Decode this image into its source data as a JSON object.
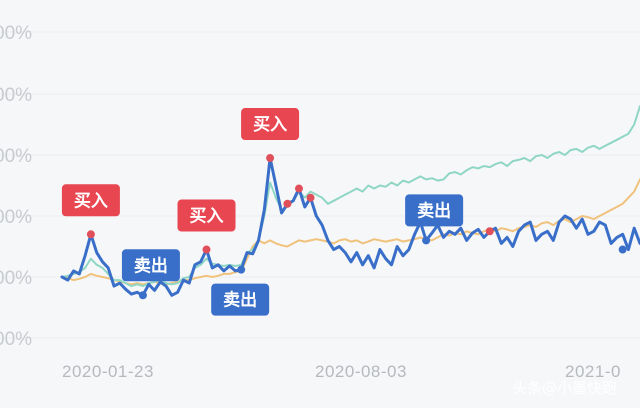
{
  "chart_data": {
    "type": "line",
    "title": "",
    "xlabel": "",
    "ylabel": "",
    "y_tick_labels": [
      "00%",
      "00%",
      "00%",
      "00%",
      "00%",
      "00%"
    ],
    "x_tick_labels": [
      "2020-01-23",
      "2020-08-03",
      "2021-0"
    ],
    "grid": true,
    "legend": "none",
    "series": [
      {
        "color": "#3a6fc9",
        "x": [
          0,
          1,
          2,
          3,
          4,
          5,
          6,
          7,
          8,
          9,
          10,
          11,
          12,
          13,
          14,
          15,
          16,
          17,
          18,
          19,
          20,
          21,
          22,
          23,
          24,
          25,
          26,
          27,
          28,
          29,
          30,
          31,
          32,
          33,
          34,
          35,
          36,
          37,
          38,
          39,
          40,
          41,
          42,
          43,
          44,
          45,
          46,
          47,
          48,
          49,
          50,
          51,
          52,
          53,
          54,
          55,
          56,
          57,
          58,
          59,
          60,
          61,
          62,
          63,
          64,
          65,
          66,
          67,
          68,
          69,
          70,
          71,
          72,
          73,
          74,
          75,
          76,
          77,
          78,
          79,
          80,
          81,
          82,
          83,
          84,
          85,
          86,
          87,
          88,
          89,
          90,
          91,
          92,
          93,
          94,
          95,
          96,
          97,
          98,
          99,
          100
        ],
        "values": [
          1.0,
          0.95,
          1.1,
          1.05,
          1.35,
          1.7,
          1.4,
          1.25,
          1.15,
          0.85,
          0.9,
          0.8,
          0.72,
          0.75,
          0.7,
          0.88,
          0.78,
          0.92,
          0.85,
          0.7,
          0.75,
          0.95,
          0.9,
          1.2,
          1.25,
          1.45,
          1.15,
          1.2,
          1.1,
          1.18,
          1.1,
          1.12,
          1.4,
          1.38,
          1.6,
          2.1,
          2.95,
          2.5,
          2.05,
          2.2,
          2.25,
          2.45,
          2.15,
          2.3,
          2.0,
          1.85,
          1.6,
          1.45,
          1.5,
          1.4,
          1.25,
          1.4,
          1.2,
          1.35,
          1.15,
          1.45,
          1.3,
          1.2,
          1.5,
          1.35,
          1.45,
          1.7,
          1.9,
          1.6,
          1.72,
          1.85,
          1.65,
          1.75,
          1.7,
          1.8,
          1.6,
          1.72,
          1.78,
          1.65,
          1.75,
          1.8,
          1.55,
          1.65,
          1.5,
          1.75,
          1.85,
          1.9,
          1.6,
          1.7,
          1.75,
          1.6,
          1.9,
          2.0,
          1.95,
          1.8,
          1.95,
          1.7,
          1.75,
          1.9,
          1.85,
          1.55,
          1.65,
          1.7,
          1.45,
          1.8,
          1.55
        ]
      },
      {
        "color": "#8fd6c4",
        "x": [
          0,
          1,
          2,
          3,
          4,
          5,
          6,
          7,
          8,
          9,
          10,
          11,
          12,
          13,
          14,
          15,
          16,
          17,
          18,
          19,
          20,
          21,
          22,
          23,
          24,
          25,
          26,
          27,
          28,
          29,
          30,
          31,
          32,
          33,
          34,
          35,
          36,
          37,
          38,
          39,
          40,
          41,
          42,
          43,
          44,
          45,
          46,
          47,
          48,
          49,
          50,
          51,
          52,
          53,
          54,
          55,
          56,
          57,
          58,
          59,
          60,
          61,
          62,
          63,
          64,
          65,
          66,
          67,
          68,
          69,
          70,
          71,
          72,
          73,
          74,
          75,
          76,
          77,
          78,
          79,
          80,
          81,
          82,
          83,
          84,
          85,
          86,
          87,
          88,
          89,
          90,
          91,
          92,
          93,
          94,
          95,
          96,
          97,
          98,
          99,
          100
        ],
        "values": [
          1.0,
          1.02,
          1.05,
          1.08,
          1.15,
          1.3,
          1.2,
          1.15,
          1.05,
          0.95,
          0.95,
          0.9,
          0.85,
          0.88,
          0.85,
          0.9,
          0.92,
          0.95,
          0.9,
          0.88,
          0.9,
          0.98,
          1.0,
          1.15,
          1.2,
          1.3,
          1.22,
          1.2,
          1.18,
          1.2,
          1.18,
          1.2,
          1.4,
          1.45,
          1.6,
          2.0,
          2.55,
          2.3,
          2.1,
          2.15,
          2.25,
          2.4,
          2.3,
          2.4,
          2.35,
          2.3,
          2.2,
          2.25,
          2.3,
          2.35,
          2.4,
          2.45,
          2.4,
          2.5,
          2.45,
          2.5,
          2.48,
          2.55,
          2.5,
          2.58,
          2.55,
          2.6,
          2.65,
          2.6,
          2.62,
          2.58,
          2.6,
          2.7,
          2.72,
          2.68,
          2.75,
          2.8,
          2.78,
          2.82,
          2.8,
          2.85,
          2.88,
          2.82,
          2.9,
          2.92,
          2.95,
          2.9,
          2.98,
          3.0,
          2.95,
          3.02,
          3.05,
          3.0,
          3.08,
          3.1,
          3.05,
          3.12,
          3.15,
          3.1,
          3.15,
          3.2,
          3.25,
          3.3,
          3.35,
          3.5,
          3.8
        ]
      },
      {
        "color": "#f0c27b",
        "x": [
          0,
          1,
          2,
          3,
          4,
          5,
          6,
          7,
          8,
          9,
          10,
          11,
          12,
          13,
          14,
          15,
          16,
          17,
          18,
          19,
          20,
          21,
          22,
          23,
          24,
          25,
          26,
          27,
          28,
          29,
          30,
          31,
          32,
          33,
          34,
          35,
          36,
          37,
          38,
          39,
          40,
          41,
          42,
          43,
          44,
          45,
          46,
          47,
          48,
          49,
          50,
          51,
          52,
          53,
          54,
          55,
          56,
          57,
          58,
          59,
          60,
          61,
          62,
          63,
          64,
          65,
          66,
          67,
          68,
          69,
          70,
          71,
          72,
          73,
          74,
          75,
          76,
          77,
          78,
          79,
          80,
          81,
          82,
          83,
          84,
          85,
          86,
          87,
          88,
          89,
          90,
          91,
          92,
          93,
          94,
          95,
          96,
          97,
          98,
          99,
          100
        ],
        "values": [
          1.0,
          0.98,
          0.95,
          0.97,
          1.0,
          1.05,
          1.02,
          1.0,
          0.98,
          0.95,
          0.93,
          0.9,
          0.88,
          0.9,
          0.88,
          0.9,
          0.92,
          0.9,
          0.88,
          0.9,
          0.92,
          0.95,
          0.95,
          0.98,
          1.0,
          1.02,
          1.0,
          1.02,
          1.05,
          1.05,
          1.08,
          1.1,
          1.3,
          1.5,
          1.6,
          1.55,
          1.6,
          1.55,
          1.52,
          1.5,
          1.55,
          1.6,
          1.58,
          1.6,
          1.62,
          1.6,
          1.58,
          1.55,
          1.6,
          1.62,
          1.58,
          1.6,
          1.55,
          1.58,
          1.62,
          1.6,
          1.58,
          1.6,
          1.62,
          1.58,
          1.6,
          1.62,
          1.65,
          1.62,
          1.6,
          1.65,
          1.7,
          1.68,
          1.72,
          1.7,
          1.75,
          1.72,
          1.7,
          1.75,
          1.78,
          1.75,
          1.8,
          1.78,
          1.75,
          1.8,
          1.82,
          1.85,
          1.82,
          1.88,
          1.9,
          1.85,
          1.92,
          1.95,
          1.9,
          1.95,
          2.0,
          1.98,
          1.95,
          2.0,
          2.05,
          2.1,
          2.15,
          2.2,
          2.3,
          2.4,
          2.6
        ]
      }
    ],
    "annotations": [
      {
        "label": "买入",
        "type": "buy",
        "x": 5,
        "y": 1.7
      },
      {
        "label": "卖出",
        "type": "sell",
        "x": 14,
        "y": 0.7
      },
      {
        "label": "买入",
        "type": "buy",
        "x": 25,
        "y": 1.45
      },
      {
        "label": "卖出",
        "type": "sell",
        "x": 31,
        "y": 1.12
      },
      {
        "label": "买入",
        "type": "buy",
        "x": 36,
        "y": 2.95
      },
      {
        "label": "卖出",
        "type": "sell",
        "x": 63,
        "y": 1.6
      }
    ],
    "extra_markers": [
      {
        "x": 39,
        "y": 2.2,
        "color": "#e0505a"
      },
      {
        "x": 41,
        "y": 2.45,
        "color": "#e0505a"
      },
      {
        "x": 43,
        "y": 2.3,
        "color": "#e0505a"
      },
      {
        "x": 74,
        "y": 1.75,
        "color": "#e0505a"
      },
      {
        "x": 97,
        "y": 1.45,
        "color": "#3a6fc9"
      }
    ],
    "colors": {
      "buy": "#e84651",
      "sell": "#3a6fc9"
    }
  },
  "watermark": {
    "text": "头条@小墨快跑"
  }
}
